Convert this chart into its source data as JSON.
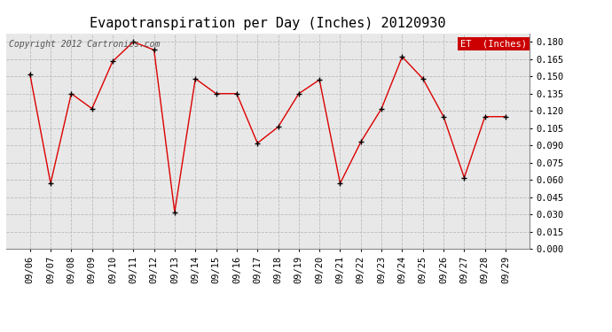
{
  "title": "Evapotranspiration per Day (Inches) 20120930",
  "copyright_text": "Copyright 2012 Cartronics.com",
  "legend_label": "ET  (Inches)",
  "line_color": "#dd0000",
  "marker_color": "#000000",
  "background_color": "#ffffff",
  "plot_bg_color": "#e8e8e8",
  "grid_color": "#bbbbbb",
  "dates": [
    "09/06",
    "09/07",
    "09/08",
    "09/09",
    "09/10",
    "09/11",
    "09/12",
    "09/13",
    "09/14",
    "09/15",
    "09/16",
    "09/17",
    "09/18",
    "09/19",
    "09/20",
    "09/21",
    "09/22",
    "09/23",
    "09/24",
    "09/25",
    "09/26",
    "09/27",
    "09/28",
    "09/29"
  ],
  "values": [
    0.152,
    0.057,
    0.135,
    0.122,
    0.163,
    0.18,
    0.173,
    0.032,
    0.148,
    0.135,
    0.135,
    0.092,
    0.106,
    0.135,
    0.147,
    0.057,
    0.093,
    0.122,
    0.167,
    0.148,
    0.115,
    0.062,
    0.115,
    0.115
  ],
  "ylim": [
    0.0,
    0.1875
  ],
  "yticks": [
    0.0,
    0.015,
    0.03,
    0.045,
    0.06,
    0.075,
    0.09,
    0.105,
    0.12,
    0.135,
    0.15,
    0.165,
    0.18
  ],
  "title_fontsize": 11,
  "tick_fontsize": 7.5,
  "copyright_fontsize": 7
}
